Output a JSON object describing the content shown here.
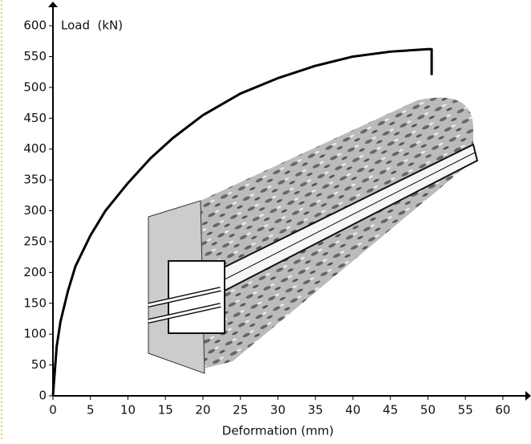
{
  "chart_data": {
    "type": "line",
    "y_label": "Load  (kN)",
    "x_label": "Deformation (mm)",
    "x": [
      0,
      0.5,
      1,
      2,
      3,
      5,
      7,
      10,
      13,
      16,
      20,
      25,
      30,
      35,
      40,
      45,
      50,
      50.5,
      50.5
    ],
    "series": [
      {
        "color": "#000000",
        "values": [
          0,
          80,
          120,
          170,
          210,
          260,
          300,
          345,
          385,
          418,
          455,
          490,
          515,
          535,
          550,
          558,
          562,
          562,
          520
        ]
      }
    ],
    "xlim": [
      0,
      63
    ],
    "ylim": [
      0,
      630
    ],
    "xticks": [
      0,
      5,
      10,
      15,
      20,
      25,
      30,
      35,
      40,
      45,
      50,
      55,
      60
    ],
    "yticks": [
      0,
      50,
      100,
      150,
      200,
      250,
      300,
      350,
      400,
      450,
      500,
      550,
      600
    ]
  }
}
